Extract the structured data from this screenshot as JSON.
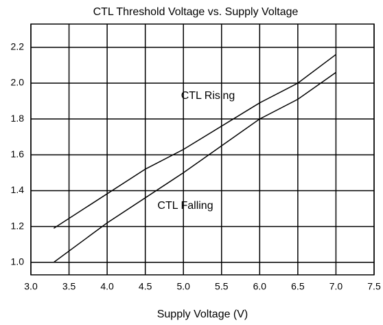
{
  "chart_data": {
    "type": "line",
    "title": "CTL Threshold Voltage vs. Supply Voltage",
    "x_label": "Supply Voltage (V)",
    "xlim": [
      3.0,
      7.5
    ],
    "ylim": [
      0.93,
      2.33
    ],
    "xticks": [
      {
        "value": 3.0,
        "label": "3.0"
      },
      3.5,
      {
        "value": 4.0,
        "label": "4.0"
      },
      4.5,
      {
        "value": 5.0,
        "label": "5.0"
      },
      5.5,
      {
        "value": 6.0,
        "label": "6.0"
      },
      6.5,
      {
        "value": 7.0,
        "label": "7.0"
      },
      7.5
    ],
    "yticks": [
      {
        "value": 1.0,
        "label": "1.0"
      },
      1.2,
      1.4,
      1.6,
      1.8,
      {
        "value": 2.0,
        "label": "2.0"
      },
      2.2
    ],
    "grid": true,
    "series": [
      {
        "name": "CTL Rising",
        "color": "#000000",
        "x": [
          3.3,
          4.5,
          5.0,
          6.0,
          6.5,
          7.0
        ],
        "values": [
          1.19,
          1.52,
          1.63,
          1.89,
          2.0,
          2.16
        ]
      },
      {
        "name": "CTL Falling",
        "color": "#000000",
        "x": [
          3.3,
          4.0,
          5.0,
          6.0,
          6.5,
          7.0
        ],
        "values": [
          1.0,
          1.22,
          1.5,
          1.8,
          1.91,
          2.06
        ]
      }
    ]
  }
}
